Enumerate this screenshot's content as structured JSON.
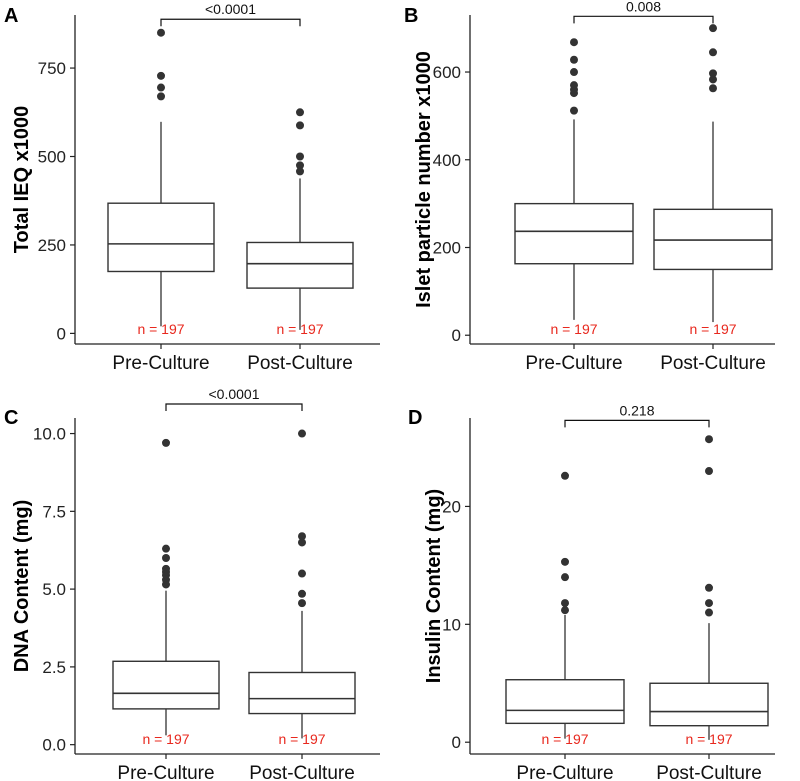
{
  "colors": {
    "n_label": "#e8281e",
    "box_stroke": "#333333",
    "outlier": "#333333"
  },
  "chart_data": [
    {
      "type": "box",
      "panel": "A",
      "ylabel": "Total IEQ x1000",
      "ylim": [
        -30,
        900
      ],
      "yticks": [
        0,
        250,
        500,
        750
      ],
      "yticklabels": [
        "0",
        "250",
        "500",
        "750"
      ],
      "categories": [
        "Pre-Culture",
        "Post-Culture"
      ],
      "boxes": [
        {
          "whisker_low": 20,
          "q1": 175,
          "median": 253,
          "q3": 368,
          "whisker_high": 598,
          "outliers": [
            670,
            695,
            728,
            850
          ],
          "n_label": "n = 197"
        },
        {
          "whisker_low": 10,
          "q1": 128,
          "median": 197,
          "q3": 257,
          "whisker_high": 438,
          "outliers": [
            458,
            475,
            500,
            588,
            625
          ],
          "n_label": "n = 197"
        }
      ],
      "p_value": "<0.0001",
      "bracket_y": 888
    },
    {
      "type": "box",
      "panel": "B",
      "ylabel": "Islet particle number x1000",
      "ylim": [
        -20,
        730
      ],
      "yticks": [
        0,
        200,
        400,
        600
      ],
      "yticklabels": [
        "0",
        "200",
        "400",
        "600"
      ],
      "categories": [
        "Pre-Culture",
        "Post-Culture"
      ],
      "boxes": [
        {
          "whisker_low": 35,
          "q1": 163,
          "median": 237,
          "q3": 300,
          "whisker_high": 492,
          "outliers": [
            512,
            552,
            560,
            570,
            600,
            628,
            668
          ],
          "n_label": "n = 197"
        },
        {
          "whisker_low": 30,
          "q1": 150,
          "median": 217,
          "q3": 287,
          "whisker_high": 487,
          "outliers": [
            563,
            583,
            597,
            645,
            700
          ],
          "n_label": "n = 197"
        }
      ],
      "p_value": "0.008",
      "bracket_y": 727
    },
    {
      "type": "box",
      "panel": "C",
      "ylabel": "DNA Content (mg)",
      "ylim": [
        -0.3,
        10.5
      ],
      "yticks": [
        0,
        2.5,
        5,
        7.5,
        10
      ],
      "yticklabels": [
        "0.0",
        "2.5",
        "5.0",
        "7.5",
        "10.0"
      ],
      "categories": [
        "Pre-Culture",
        "Post-Culture"
      ],
      "boxes": [
        {
          "whisker_low": 0.3,
          "q1": 1.15,
          "median": 1.65,
          "q3": 2.68,
          "whisker_high": 4.95,
          "outliers": [
            5.15,
            5.3,
            5.45,
            5.55,
            5.65,
            6.0,
            6.3,
            9.7
          ],
          "n_label": "n = 197"
        },
        {
          "whisker_low": 0.2,
          "q1": 1.0,
          "median": 1.48,
          "q3": 2.32,
          "whisker_high": 4.3,
          "outliers": [
            4.55,
            4.85,
            5.5,
            6.5,
            6.7,
            10.0
          ],
          "n_label": "n = 197"
        }
      ],
      "p_value": "<0.0001",
      "bracket_y": 10.95
    },
    {
      "type": "box",
      "panel": "D",
      "ylabel": "Insulin Content (mg)",
      "ylim": [
        -1,
        27.5
      ],
      "yticks": [
        0,
        10,
        20
      ],
      "yticklabels": [
        "0",
        "10",
        "20"
      ],
      "categories": [
        "Pre-Culture",
        "Post-Culture"
      ],
      "boxes": [
        {
          "whisker_low": 0.3,
          "q1": 1.6,
          "median": 2.7,
          "q3": 5.3,
          "whisker_high": 10.8,
          "outliers": [
            11.2,
            11.8,
            14.0,
            15.3,
            22.6
          ],
          "n_label": "n = 197"
        },
        {
          "whisker_low": 0.2,
          "q1": 1.4,
          "median": 2.6,
          "q3": 5.0,
          "whisker_high": 10.1,
          "outliers": [
            11.0,
            11.8,
            13.1,
            23.0,
            25.7
          ],
          "n_label": "n = 197"
        }
      ],
      "p_value": "0.218",
      "bracket_y": 27.3
    }
  ]
}
